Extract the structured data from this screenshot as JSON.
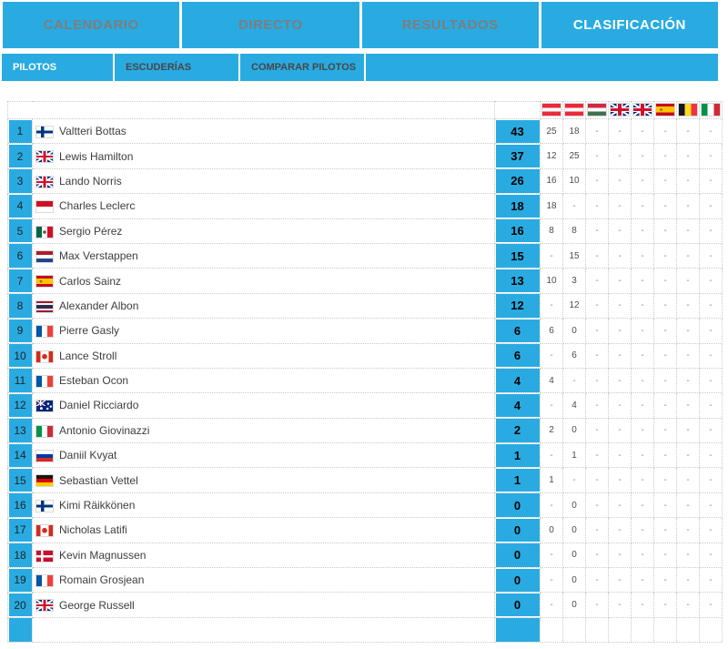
{
  "colors": {
    "accent": "#29abe2",
    "nav_inactive_text": "#7d7d7d",
    "nav_active_text": "#ffffff",
    "subnav_inactive_text": "#474747"
  },
  "top_nav": {
    "tabs": [
      {
        "label": "CALENDARIO",
        "active": false
      },
      {
        "label": "DIRECTO",
        "active": false
      },
      {
        "label": "RESULTADOS",
        "active": false
      },
      {
        "label": "CLASIFICACIÓN",
        "active": true
      }
    ]
  },
  "sub_nav": {
    "tabs": [
      {
        "label": "PILOTOS",
        "active": true
      },
      {
        "label": "ESCUDERÍAS",
        "active": false
      },
      {
        "label": "COMPARAR PILOTOS",
        "active": false
      }
    ]
  },
  "standings_table": {
    "race_flag_columns": [
      "austria",
      "austria",
      "hungary",
      "uk",
      "uk",
      "spain",
      "belgium",
      "italy"
    ],
    "rows": [
      {
        "position": "1",
        "flag": "finland",
        "driver": "Valtteri Bottas",
        "points": "43",
        "races": [
          "25",
          "18",
          "-",
          "-",
          "-",
          "-",
          "-",
          "-"
        ]
      },
      {
        "position": "2",
        "flag": "uk",
        "driver": "Lewis Hamilton",
        "points": "37",
        "races": [
          "12",
          "25",
          "-",
          "-",
          "-",
          "-",
          "-",
          "-"
        ]
      },
      {
        "position": "3",
        "flag": "uk",
        "driver": "Lando Norris",
        "points": "26",
        "races": [
          "16",
          "10",
          "-",
          "-",
          "-",
          "-",
          "-",
          "-"
        ]
      },
      {
        "position": "4",
        "flag": "monaco",
        "driver": "Charles Leclerc",
        "points": "18",
        "races": [
          "18",
          "-",
          "-",
          "-",
          "-",
          "-",
          "-",
          "-"
        ]
      },
      {
        "position": "5",
        "flag": "mexico",
        "driver": "Sergio Pérez",
        "points": "16",
        "races": [
          "8",
          "8",
          "-",
          "-",
          "-",
          "-",
          "-",
          "-"
        ]
      },
      {
        "position": "6",
        "flag": "netherlands",
        "driver": "Max Verstappen",
        "points": "15",
        "races": [
          "-",
          "15",
          "-",
          "-",
          "-",
          "-",
          "-",
          "-"
        ]
      },
      {
        "position": "7",
        "flag": "spain",
        "driver": "Carlos Sainz",
        "points": "13",
        "races": [
          "10",
          "3",
          "-",
          "-",
          "-",
          "-",
          "-",
          "-"
        ]
      },
      {
        "position": "8",
        "flag": "thailand",
        "driver": "Alexander Albon",
        "points": "12",
        "races": [
          "-",
          "12",
          "-",
          "-",
          "-",
          "-",
          "-",
          "-"
        ]
      },
      {
        "position": "9",
        "flag": "france",
        "driver": "Pierre Gasly",
        "points": "6",
        "races": [
          "6",
          "0",
          "-",
          "-",
          "-",
          "-",
          "-",
          "-"
        ]
      },
      {
        "position": "10",
        "flag": "canada",
        "driver": "Lance Stroll",
        "points": "6",
        "races": [
          "-",
          "6",
          "-",
          "-",
          "-",
          "-",
          "-",
          "-"
        ]
      },
      {
        "position": "11",
        "flag": "france",
        "driver": "Esteban Ocon",
        "points": "4",
        "races": [
          "4",
          "-",
          "-",
          "-",
          "-",
          "-",
          "-",
          "-"
        ]
      },
      {
        "position": "12",
        "flag": "australia",
        "driver": "Daniel Ricciardo",
        "points": "4",
        "races": [
          "-",
          "4",
          "-",
          "-",
          "-",
          "-",
          "-",
          "-"
        ]
      },
      {
        "position": "13",
        "flag": "italy",
        "driver": "Antonio Giovinazzi",
        "points": "2",
        "races": [
          "2",
          "0",
          "-",
          "-",
          "-",
          "-",
          "-",
          "-"
        ]
      },
      {
        "position": "14",
        "flag": "russia",
        "driver": "Daniil Kvyat",
        "points": "1",
        "races": [
          "-",
          "1",
          "-",
          "-",
          "-",
          "-",
          "-",
          "-"
        ]
      },
      {
        "position": "15",
        "flag": "germany",
        "driver": "Sebastian Vettel",
        "points": "1",
        "races": [
          "1",
          "-",
          "-",
          "-",
          "-",
          "-",
          "-",
          "-"
        ]
      },
      {
        "position": "16",
        "flag": "finland",
        "driver": "Kimi Räikkönen",
        "points": "0",
        "races": [
          "-",
          "0",
          "-",
          "-",
          "-",
          "-",
          "-",
          "-"
        ]
      },
      {
        "position": "17",
        "flag": "canada",
        "driver": "Nicholas Latifi",
        "points": "0",
        "races": [
          "0",
          "0",
          "-",
          "-",
          "-",
          "-",
          "-",
          "-"
        ]
      },
      {
        "position": "18",
        "flag": "denmark",
        "driver": "Kevin Magnussen",
        "points": "0",
        "races": [
          "-",
          "0",
          "-",
          "-",
          "-",
          "-",
          "-",
          "-"
        ]
      },
      {
        "position": "19",
        "flag": "france",
        "driver": "Romain Grosjean",
        "points": "0",
        "races": [
          "-",
          "0",
          "-",
          "-",
          "-",
          "-",
          "-",
          "-"
        ]
      },
      {
        "position": "20",
        "flag": "uk",
        "driver": "George Russell",
        "points": "0",
        "races": [
          "-",
          "0",
          "-",
          "-",
          "-",
          "-",
          "-",
          "-"
        ]
      }
    ],
    "partial_next_row_visible": true
  }
}
